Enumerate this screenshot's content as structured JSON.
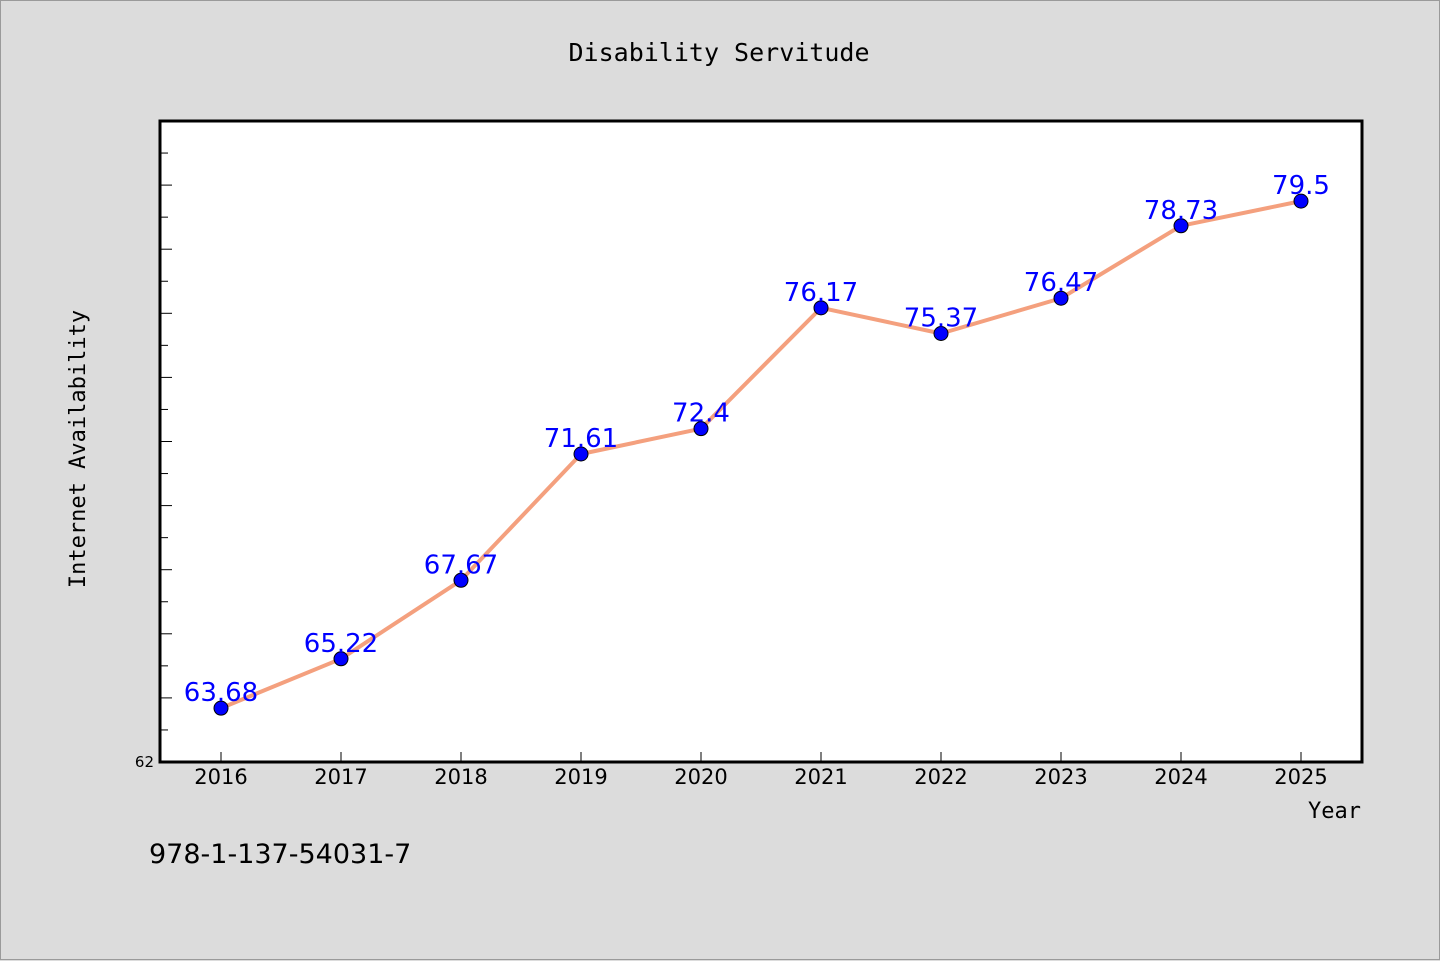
{
  "chart_data": {
    "type": "line",
    "title": "Disability Servitude",
    "xlabel": "Year",
    "ylabel": "Internet Availability",
    "categories": [
      "2016",
      "2017",
      "2018",
      "2019",
      "2020",
      "2021",
      "2022",
      "2023",
      "2024",
      "2025"
    ],
    "series": [
      {
        "values": [
          63.68,
          65.22,
          67.67,
          71.61,
          72.4,
          76.17,
          75.37,
          76.47,
          78.73,
          79.5
        ],
        "labels": [
          "63.68",
          "65.22",
          "67.67",
          "71.61",
          "72.4",
          "76.17",
          "75.37",
          "76.47",
          "78.73",
          "79.5"
        ],
        "line_color": "#f4a07e",
        "marker_color": "#0000ff",
        "label_color": "#0000ff"
      }
    ],
    "ylim": [
      62,
      82
    ],
    "y_tick_labels": [
      "62"
    ],
    "grid": false,
    "legend": "none"
  },
  "footer": {
    "text": "978-1-137-54031-7"
  }
}
